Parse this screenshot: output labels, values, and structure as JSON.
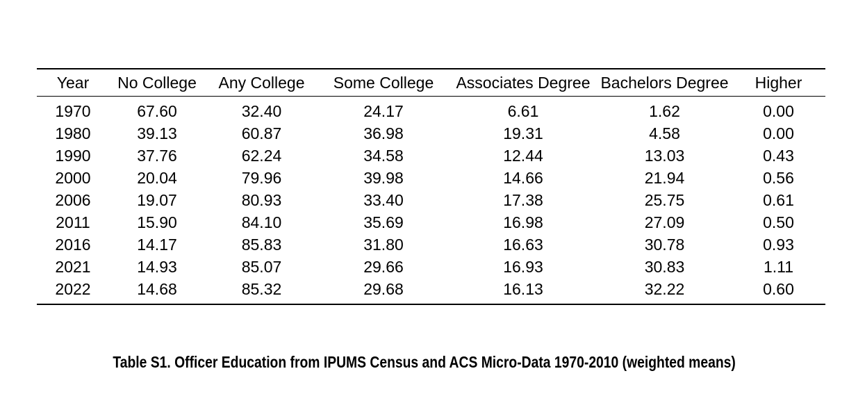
{
  "table": {
    "columns": [
      "Year",
      "No College",
      "Any College",
      "Some College",
      "Associates Degree",
      "Bachelors Degree",
      "Higher"
    ],
    "rows": [
      [
        "1970",
        "67.60",
        "32.40",
        "24.17",
        "6.61",
        "1.62",
        "0.00"
      ],
      [
        "1980",
        "39.13",
        "60.87",
        "36.98",
        "19.31",
        "4.58",
        "0.00"
      ],
      [
        "1990",
        "37.76",
        "62.24",
        "34.58",
        "12.44",
        "13.03",
        "0.43"
      ],
      [
        "2000",
        "20.04",
        "79.96",
        "39.98",
        "14.66",
        "21.94",
        "0.56"
      ],
      [
        "2006",
        "19.07",
        "80.93",
        "33.40",
        "17.38",
        "25.75",
        "0.61"
      ],
      [
        "2011",
        "15.90",
        "84.10",
        "35.69",
        "16.98",
        "27.09",
        "0.50"
      ],
      [
        "2016",
        "14.17",
        "85.83",
        "31.80",
        "16.63",
        "30.78",
        "0.93"
      ],
      [
        "2021",
        "14.93",
        "85.07",
        "29.66",
        "16.93",
        "30.83",
        "1.11"
      ],
      [
        "2022",
        "14.68",
        "85.32",
        "29.68",
        "16.13",
        "32.22",
        "0.60"
      ]
    ],
    "caption": "Table S1. Officer Education from IPUMS Census and ACS Micro-Data 1970-2010 (weighted means)"
  },
  "chart_data": {
    "type": "table",
    "title": "Table S1. Officer Education from IPUMS Census and ACS Micro-Data 1970-2010 (weighted means)",
    "categories": [
      "1970",
      "1980",
      "1990",
      "2000",
      "2006",
      "2011",
      "2016",
      "2021",
      "2022"
    ],
    "series": [
      {
        "name": "No College",
        "values": [
          67.6,
          39.13,
          37.76,
          20.04,
          19.07,
          15.9,
          14.17,
          14.93,
          14.68
        ]
      },
      {
        "name": "Any College",
        "values": [
          32.4,
          60.87,
          62.24,
          79.96,
          80.93,
          84.1,
          85.83,
          85.07,
          85.32
        ]
      },
      {
        "name": "Some College",
        "values": [
          24.17,
          36.98,
          34.58,
          39.98,
          33.4,
          35.69,
          31.8,
          29.66,
          29.68
        ]
      },
      {
        "name": "Associates Degree",
        "values": [
          6.61,
          19.31,
          12.44,
          14.66,
          17.38,
          16.98,
          16.63,
          16.93,
          16.13
        ]
      },
      {
        "name": "Bachelors Degree",
        "values": [
          1.62,
          4.58,
          13.03,
          21.94,
          25.75,
          27.09,
          30.78,
          30.83,
          32.22
        ]
      },
      {
        "name": "Higher",
        "values": [
          0.0,
          0.0,
          0.43,
          0.56,
          0.61,
          0.5,
          0.93,
          1.11,
          0.6
        ]
      }
    ]
  },
  "colors": {
    "background": "#ffffff",
    "text": "#000000",
    "rule": "#000000"
  }
}
